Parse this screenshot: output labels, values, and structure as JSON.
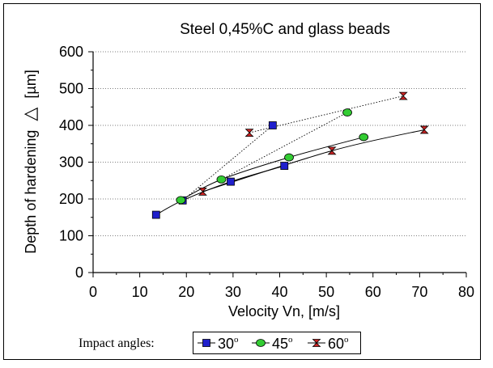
{
  "chart_data": {
    "type": "line",
    "title": "Steel 0,45%C and glass beads",
    "xlabel": "Velocity Vn, [m/s]",
    "ylabel": "Depth of hardening",
    "ylabel_symbol": "△",
    "ylabel_unit": "[µm]",
    "xlim": [
      0,
      80
    ],
    "ylim": [
      0,
      600
    ],
    "x_ticks": [
      "0",
      "10",
      "20",
      "30",
      "40",
      "50",
      "60",
      "70",
      "80"
    ],
    "y_ticks": [
      "0",
      "100",
      "200",
      "300",
      "400",
      "500",
      "600"
    ],
    "grid": "horizontal dotted",
    "legend": {
      "title": "Impact angles:",
      "placement": "bottom"
    },
    "series": [
      {
        "name": "30",
        "marker": "square",
        "color": "#1f1fcc",
        "points": [
          [
            13.5,
            157
          ],
          [
            19.2,
            196
          ],
          [
            29.5,
            247
          ],
          [
            41,
            290
          ],
          [
            38.5,
            400
          ]
        ],
        "fit": [
          [
            13.5,
            157
          ],
          [
            19.2,
            196
          ],
          [
            29.5,
            247
          ],
          [
            41,
            290
          ]
        ],
        "dotted": [
          [
            19.2,
            196
          ],
          [
            38.5,
            400
          ]
        ]
      },
      {
        "name": "45",
        "marker": "circle",
        "color": "#33cc33",
        "points": [
          [
            18.8,
            197
          ],
          [
            27.5,
            253
          ],
          [
            42,
            313
          ],
          [
            58,
            368
          ],
          [
            54.5,
            435
          ]
        ],
        "fit": [
          [
            18.8,
            197
          ],
          [
            27.5,
            253
          ],
          [
            42,
            313
          ],
          [
            58,
            368
          ]
        ],
        "dotted": [
          [
            27.5,
            253
          ],
          [
            54.5,
            435
          ]
        ]
      },
      {
        "name": "60",
        "marker": "hourglass",
        "color": "#cc2222",
        "points": [
          [
            23.5,
            220
          ],
          [
            51.2,
            331
          ],
          [
            71,
            388
          ],
          [
            33.5,
            380
          ],
          [
            66.5,
            480
          ]
        ],
        "fit": [
          [
            23.5,
            220
          ],
          [
            51.2,
            331
          ],
          [
            71,
            388
          ]
        ],
        "dotted": [
          [
            33.5,
            380
          ],
          [
            66.5,
            480
          ]
        ]
      }
    ]
  }
}
